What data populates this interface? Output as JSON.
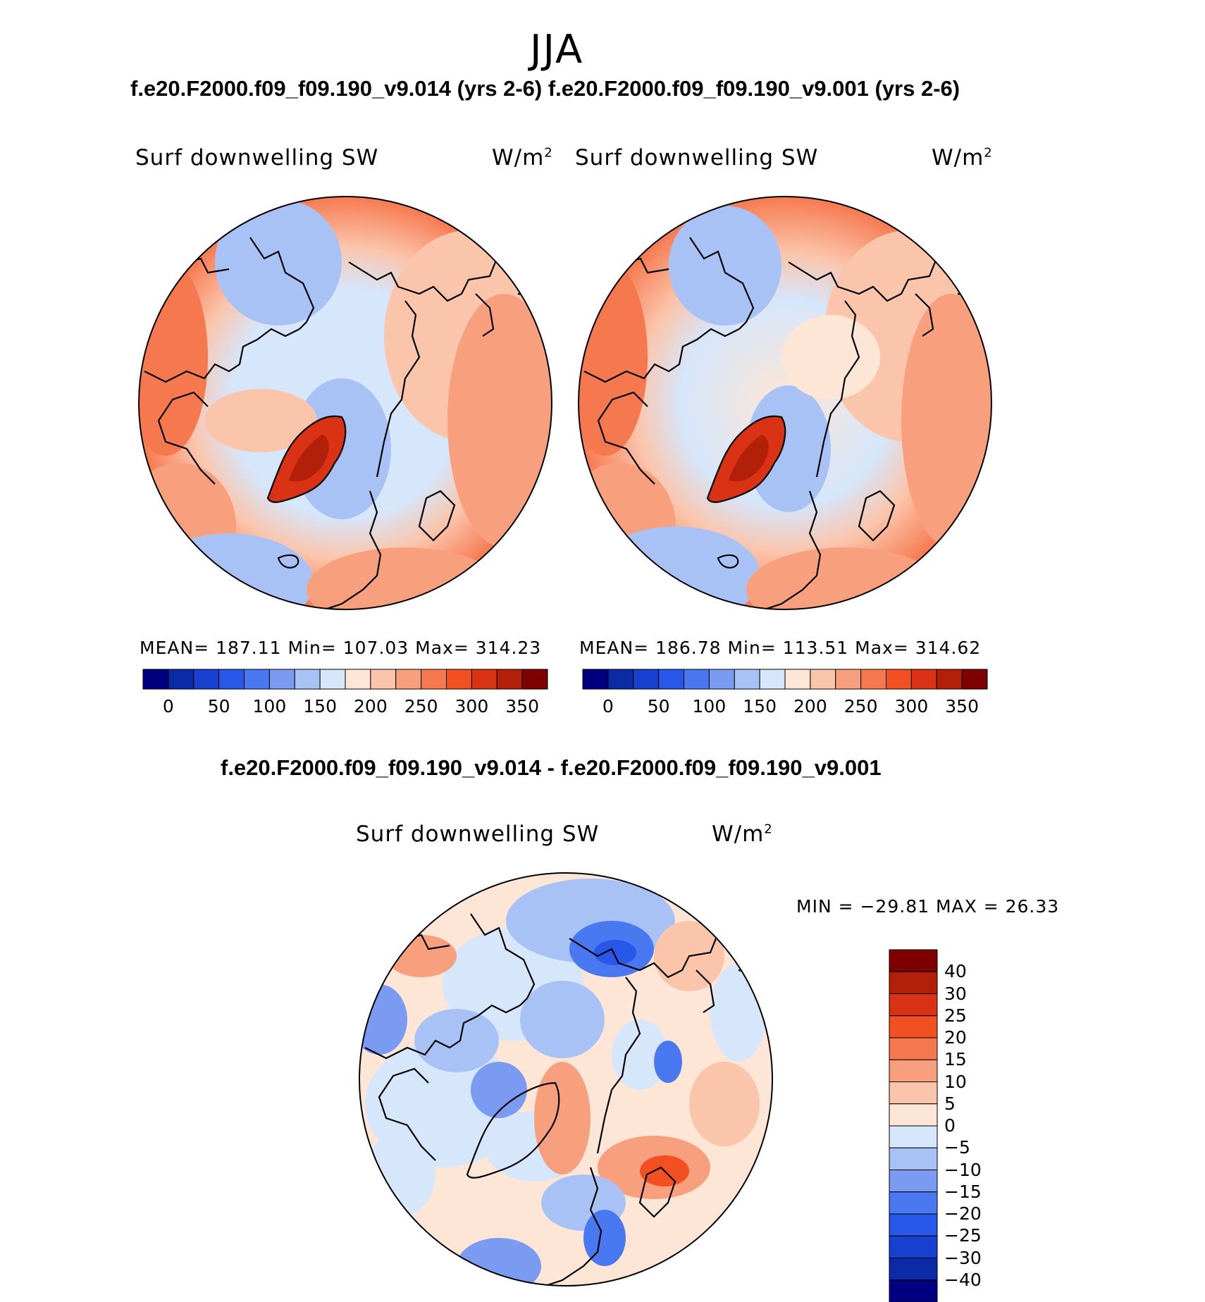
{
  "figure": {
    "season": "JJA",
    "header_cases": "f.e20.F2000.f09_f09.190_v9.014 (yrs 2-6) f.e20.F2000.f09_f09.190_v9.001 (yrs 2-6)",
    "diff_title": "f.e20.F2000.f09_f09.190_v9.014 - f.e20.F2000.f09_f09.190_v9.001"
  },
  "panels": [
    {
      "variable": "Surf downwelling SW",
      "units": "W/m",
      "units_exp": "2",
      "stats": "MEAN=  187.11    Min=  107.03    Max=  314.23"
    },
    {
      "variable": "Surf downwelling SW",
      "units": "W/m",
      "units_exp": "2",
      "stats": "MEAN=  186.78    Min=  113.51    Max=  314.62"
    },
    {
      "variable": "Surf downwelling SW",
      "units": "W/m",
      "units_exp": "2",
      "stats": "MIN  =  −29.81  MAX  =    26.33"
    }
  ],
  "colors": {
    "field_colors": [
      "#000080",
      "#0a2aa6",
      "#1740d0",
      "#2758ea",
      "#4a78f0",
      "#7b9bf2",
      "#a9c2f6",
      "#d6e6fb",
      "#fde6d6",
      "#fbc5ac",
      "#f89f7e",
      "#f6784e",
      "#f25022",
      "#d93214",
      "#b3200a",
      "#7f0000"
    ],
    "diff_colors": [
      "#000080",
      "#0a2aa6",
      "#1740d0",
      "#2758ea",
      "#4a78f0",
      "#7b9bf2",
      "#a9c2f6",
      "#d6e6fb",
      "#fde6d6",
      "#fbc5ac",
      "#f89f7e",
      "#f6784e",
      "#f25022",
      "#d93214",
      "#b3200a",
      "#7f0000"
    ]
  },
  "chart_data": [
    {
      "type": "heatmap",
      "projection": "north polar stereographic",
      "title": "Surf downwelling SW",
      "units": "W/m^2",
      "mean": 187.11,
      "min": 107.03,
      "max": 314.23,
      "colorbar_ticks": [
        "0",
        "50",
        "100",
        "150",
        "200",
        "250",
        "300",
        "350"
      ]
    },
    {
      "type": "heatmap",
      "projection": "north polar stereographic",
      "title": "Surf downwelling SW",
      "units": "W/m^2",
      "mean": 186.78,
      "min": 113.51,
      "max": 314.62,
      "colorbar_ticks": [
        "0",
        "50",
        "100",
        "150",
        "200",
        "250",
        "300",
        "350"
      ]
    },
    {
      "type": "heatmap",
      "projection": "north polar stereographic",
      "title": "Surf downwelling SW",
      "units": "W/m^2",
      "min": -29.81,
      "max": 26.33,
      "colorbar_ticks": [
        "40",
        "30",
        "25",
        "20",
        "15",
        "10",
        "5",
        "0",
        "−5",
        "−10",
        "−15",
        "−20",
        "−25",
        "−30",
        "−40"
      ]
    }
  ]
}
